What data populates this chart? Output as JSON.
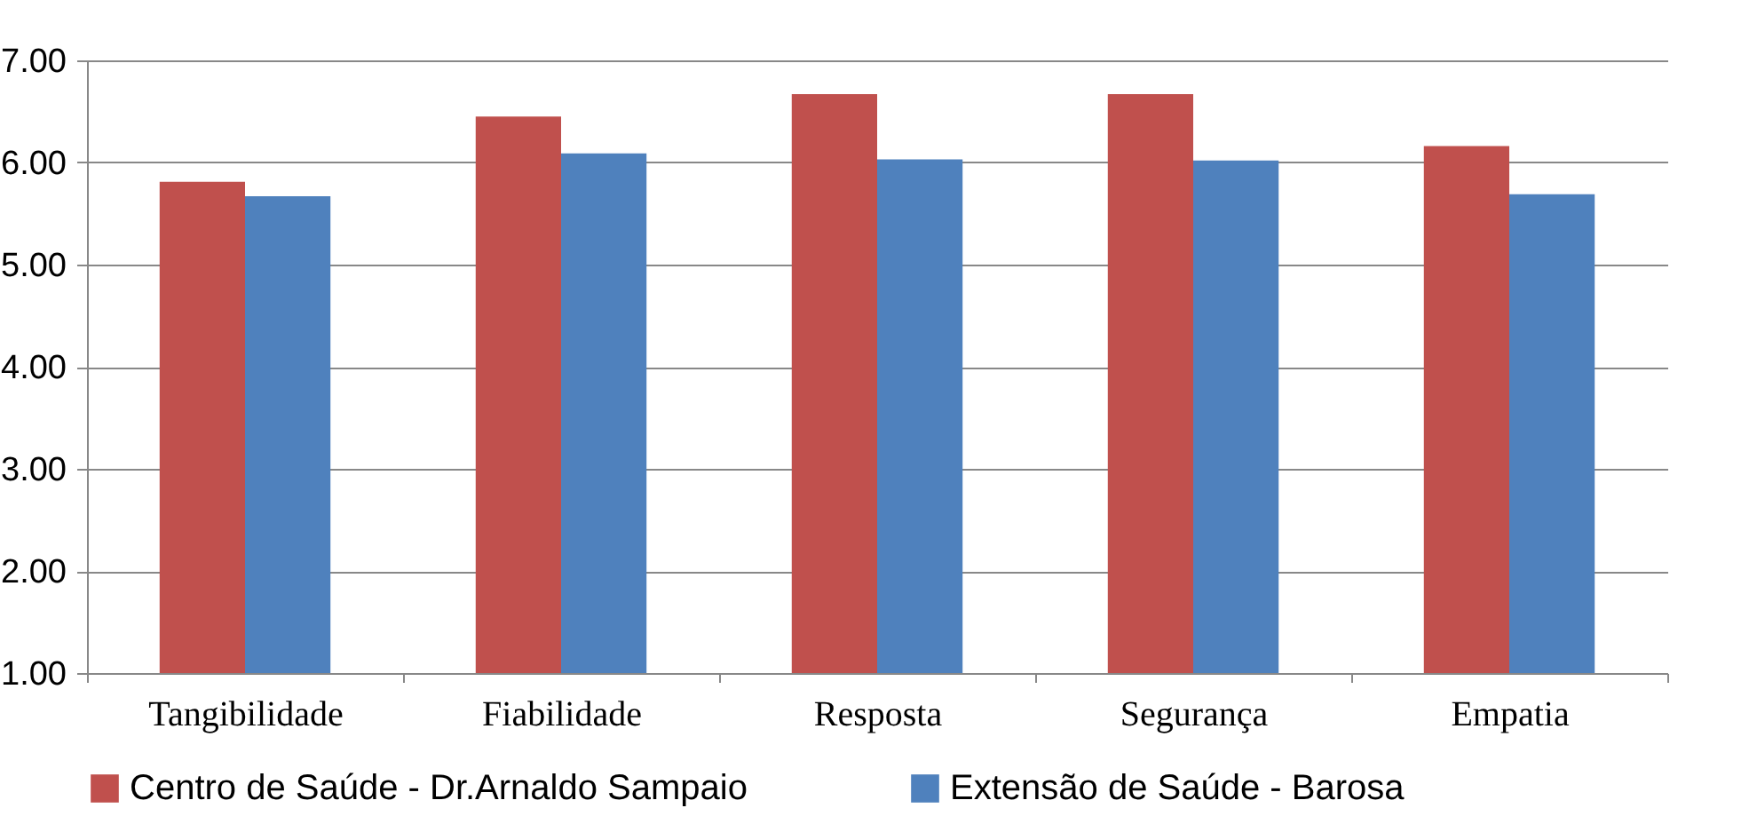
{
  "chart_data": {
    "type": "bar",
    "categories": [
      "Tangibilidade",
      "Fiabilidade",
      "Resposta",
      "Segurança",
      "Empatia"
    ],
    "series": [
      {
        "name": "Centro de Saúde - Dr.Arnaldo Sampaio",
        "color": "#c0504d",
        "values": [
          5.81,
          6.45,
          6.67,
          6.67,
          6.16
        ]
      },
      {
        "name": "Extensão de Saúde - Barosa",
        "color": "#4f81bd",
        "values": [
          5.67,
          6.09,
          6.03,
          6.02,
          5.69
        ]
      }
    ],
    "ylim": [
      1,
      7
    ],
    "yticks": [
      {
        "value": 1,
        "label": "1.00"
      },
      {
        "value": 2,
        "label": "2.00"
      },
      {
        "value": 3,
        "label": "3.00"
      },
      {
        "value": 4,
        "label": "4.00"
      },
      {
        "value": 5,
        "label": "5.00"
      },
      {
        "value": 6,
        "label": "6.00"
      },
      {
        "value": 7,
        "label": "7.00"
      }
    ],
    "grid": "y",
    "legend": "bottom"
  }
}
